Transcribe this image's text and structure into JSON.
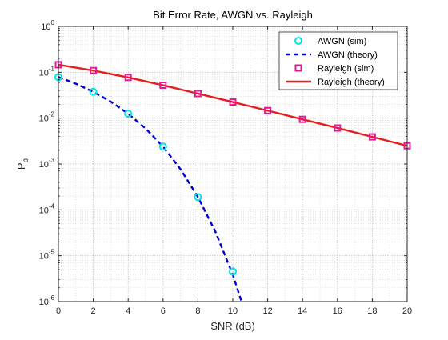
{
  "chart_data": {
    "type": "line",
    "title": "Bit Error Rate, AWGN vs. Rayleigh",
    "xlabel": "SNR (dB)",
    "ylabel": "P",
    "ylabel_subscript": "b",
    "xlim": [
      0,
      20
    ],
    "ylim": [
      1e-06,
      1
    ],
    "yscale": "log",
    "grid": true,
    "minor_grid": true,
    "legend_position": "top-right",
    "x_ticks": [
      0,
      2,
      4,
      6,
      8,
      10,
      12,
      14,
      16,
      18,
      20
    ],
    "y_ticks": [
      {
        "value": 1,
        "base": "10",
        "exp": "0"
      },
      {
        "value": 0.1,
        "base": "10",
        "exp": "-1"
      },
      {
        "value": 0.01,
        "base": "10",
        "exp": "-2"
      },
      {
        "value": 0.001,
        "base": "10",
        "exp": "-3"
      },
      {
        "value": 0.0001,
        "base": "10",
        "exp": "-4"
      },
      {
        "value": 1e-05,
        "base": "10",
        "exp": "-5"
      },
      {
        "value": 1e-06,
        "base": "10",
        "exp": "-6"
      }
    ],
    "series": [
      {
        "name": "AWGN (sim)",
        "style": "marker-circle",
        "color": "#00E5E5",
        "x": [
          0,
          2,
          4,
          6,
          8,
          10
        ],
        "y": [
          0.0786,
          0.0375,
          0.0125,
          0.0024,
          0.000191,
          4.5e-06
        ]
      },
      {
        "name": "AWGN (theory)",
        "style": "dashed-line",
        "color": "#0000D6",
        "x": [
          0,
          1,
          2,
          3,
          4,
          5,
          6,
          7,
          8,
          9,
          10,
          10.5
        ],
        "y": [
          0.0786,
          0.0563,
          0.0375,
          0.0229,
          0.0125,
          0.00595,
          0.00239,
          0.000773,
          0.000191,
          3.36e-05,
          3.87e-06,
          1e-06
        ]
      },
      {
        "name": "Rayleigh (sim)",
        "style": "marker-square",
        "color": "#E5179A",
        "x": [
          0,
          2,
          4,
          6,
          8,
          10,
          12,
          14,
          16,
          18,
          20
        ],
        "y": [
          0.146,
          0.109,
          0.0771,
          0.0522,
          0.0343,
          0.0224,
          0.0146,
          0.0094,
          0.0061,
          0.0039,
          0.0025
        ]
      },
      {
        "name": "Rayleigh (theory)",
        "style": "solid-line",
        "color": "#E81C1C",
        "x": [
          0,
          2,
          4,
          6,
          8,
          10,
          12,
          14,
          16,
          18,
          20
        ],
        "y": [
          0.146,
          0.109,
          0.0771,
          0.0522,
          0.0343,
          0.0224,
          0.0146,
          0.0094,
          0.0061,
          0.0039,
          0.0025
        ]
      }
    ]
  }
}
